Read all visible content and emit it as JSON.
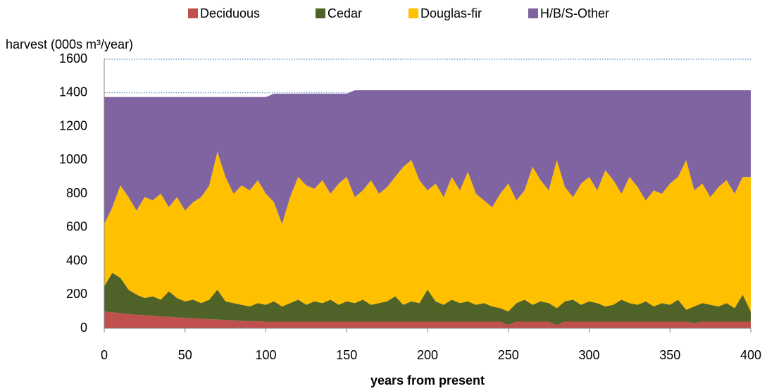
{
  "chart_data": {
    "type": "stacked_area",
    "y_label": "harvest (000s m³/year)",
    "x_label": "years from present",
    "x": [
      0,
      5,
      10,
      15,
      20,
      25,
      30,
      35,
      40,
      45,
      50,
      55,
      60,
      65,
      70,
      75,
      80,
      85,
      90,
      95,
      100,
      105,
      110,
      115,
      120,
      125,
      130,
      135,
      140,
      145,
      150,
      155,
      160,
      165,
      170,
      175,
      180,
      185,
      190,
      195,
      200,
      205,
      210,
      215,
      220,
      225,
      230,
      235,
      240,
      245,
      250,
      255,
      260,
      265,
      270,
      275,
      280,
      285,
      290,
      295,
      300,
      305,
      310,
      315,
      320,
      325,
      330,
      335,
      340,
      345,
      350,
      355,
      360,
      365,
      370,
      375,
      380,
      385,
      390,
      395,
      400
    ],
    "series": [
      {
        "name": "Deciduous",
        "color": "#c0504d",
        "values": [
          100,
          95,
          90,
          85,
          80,
          78,
          75,
          70,
          68,
          65,
          62,
          60,
          57,
          55,
          52,
          50,
          47,
          45,
          43,
          42,
          40,
          40,
          40,
          40,
          40,
          40,
          40,
          40,
          40,
          40,
          40,
          40,
          40,
          40,
          40,
          40,
          40,
          40,
          40,
          40,
          40,
          40,
          40,
          40,
          40,
          40,
          40,
          40,
          40,
          40,
          20,
          40,
          40,
          40,
          40,
          40,
          20,
          40,
          40,
          40,
          40,
          40,
          40,
          40,
          40,
          40,
          40,
          40,
          40,
          40,
          40,
          40,
          40,
          30,
          40,
          40,
          40,
          40,
          40,
          40,
          40
        ]
      },
      {
        "name": "Cedar",
        "color": "#4f6228",
        "values": [
          150,
          235,
          210,
          145,
          120,
          102,
          115,
          100,
          152,
          115,
          98,
          110,
          93,
          115,
          178,
          110,
          103,
          95,
          87,
          108,
          100,
          120,
          90,
          110,
          130,
          100,
          120,
          110,
          130,
          100,
          120,
          110,
          130,
          100,
          110,
          120,
          150,
          100,
          120,
          110,
          190,
          120,
          100,
          130,
          110,
          120,
          100,
          110,
          90,
          80,
          80,
          110,
          130,
          100,
          120,
          110,
          100,
          120,
          130,
          100,
          120,
          110,
          90,
          100,
          130,
          110,
          100,
          120,
          90,
          110,
          100,
          130,
          70,
          100,
          110,
          100,
          90,
          110,
          80,
          160,
          60
        ]
      },
      {
        "name": "Douglas-fir",
        "color": "#ffc000",
        "values": [
          370,
          390,
          550,
          550,
          500,
          600,
          570,
          630,
          500,
          600,
          540,
          580,
          630,
          680,
          820,
          740,
          650,
          710,
          690,
          730,
          660,
          590,
          490,
          630,
          730,
          710,
          670,
          730,
          630,
          720,
          740,
          630,
          650,
          740,
          650,
          680,
          710,
          820,
          840,
          730,
          590,
          700,
          640,
          730,
          670,
          770,
          660,
          610,
          590,
          680,
          760,
          610,
          650,
          820,
          720,
          670,
          880,
          680,
          610,
          720,
          740,
          670,
          810,
          740,
          630,
          750,
          700,
          600,
          690,
          650,
          720,
          730,
          890,
          690,
          710,
          640,
          710,
          730,
          680,
          700,
          800
        ]
      },
      {
        "name": "H/B/S-Other",
        "color": "#8064a2",
        "values": [
          755,
          655,
          525,
          595,
          675,
          595,
          615,
          575,
          655,
          595,
          675,
          625,
          595,
          525,
          325,
          475,
          575,
          525,
          555,
          495,
          575,
          645,
          775,
          615,
          495,
          545,
          565,
          515,
          595,
          535,
          495,
          635,
          595,
          535,
          615,
          575,
          515,
          455,
          415,
          535,
          595,
          555,
          635,
          515,
          595,
          485,
          615,
          655,
          695,
          615,
          555,
          655,
          595,
          455,
          535,
          595,
          415,
          575,
          635,
          555,
          515,
          595,
          475,
          535,
          615,
          515,
          575,
          655,
          595,
          615,
          555,
          515,
          415,
          595,
          555,
          635,
          575,
          535,
          615,
          515,
          515
        ]
      }
    ],
    "xlim": [
      0,
      400
    ],
    "xticks": [
      0,
      50,
      100,
      150,
      200,
      250,
      300,
      350,
      400
    ],
    "ylim": [
      0,
      1600
    ],
    "yticks": [
      0,
      200,
      400,
      600,
      800,
      1000,
      1200,
      1400,
      1600
    ],
    "grid": true,
    "legend": "top"
  }
}
